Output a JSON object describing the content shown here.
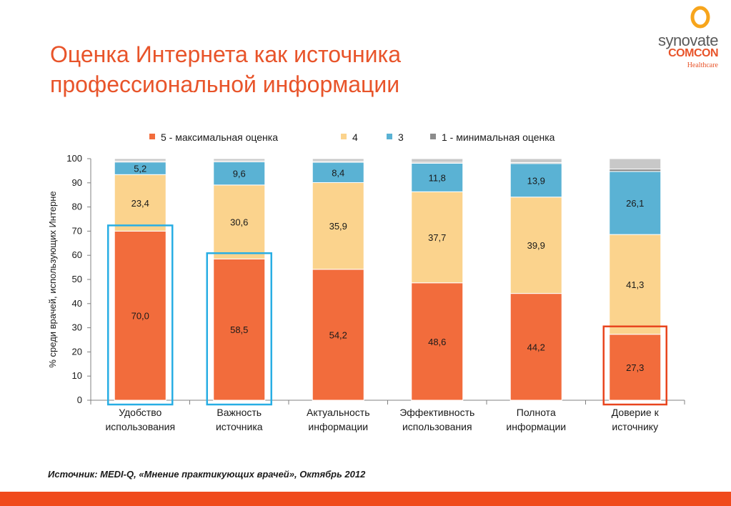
{
  "title_lines": [
    "Оценка Интернета как источника",
    "профессиональной информации"
  ],
  "logo": {
    "line1": "synovate",
    "line2": "COMCON",
    "line3": "Healthcare"
  },
  "source": "Источник:  MEDI-Q, «Мнение практикующих врачей», Октябрь 2012",
  "colors": {
    "s5": "#f26c3c",
    "s4": "#fbd38d",
    "s3": "#5ab2d4",
    "s1": "#8c8c8c",
    "rest": "#c8c8c8",
    "box_blue": "#28aee4",
    "box_red": "#e8451e",
    "title": "#e8542a"
  },
  "chart_data": {
    "type": "bar",
    "stacked": true,
    "ylabel": "% среди врачей, использующих Интерне",
    "ylim": [
      0,
      100
    ],
    "yticks": [
      0,
      10,
      20,
      30,
      40,
      50,
      60,
      70,
      80,
      90,
      100
    ],
    "legend_position": "top",
    "categories": [
      [
        "Удобство",
        "использования"
      ],
      [
        "Важность",
        "источника"
      ],
      [
        "Актуальность",
        "информации"
      ],
      [
        "Эффективность",
        "использования"
      ],
      [
        "Полнота",
        "информации"
      ],
      [
        "Доверие к",
        "источнику"
      ]
    ],
    "series": [
      {
        "name": "5 - максимальная оценка",
        "values": [
          70.0,
          58.5,
          54.2,
          48.6,
          44.2,
          27.3
        ],
        "labels": [
          "70,0",
          "58,5",
          "54,2",
          "48,6",
          "44,2",
          "27,3"
        ]
      },
      {
        "name": "4",
        "values": [
          23.4,
          30.6,
          35.9,
          37.7,
          39.9,
          41.3
        ],
        "labels": [
          "23,4",
          "30,6",
          "35,9",
          "37,7",
          "39,9",
          "41,3"
        ]
      },
      {
        "name": "3",
        "values": [
          5.2,
          9.6,
          8.4,
          11.8,
          13.9,
          26.1
        ],
        "labels": [
          "5,2",
          "9,6",
          "8,4",
          "11,8",
          "13,9",
          "26,1"
        ]
      },
      {
        "name": "1 - минимальная оценка",
        "values": [
          0.4,
          0.4,
          0.4,
          0.4,
          0.4,
          1.0
        ],
        "labels": [
          "",
          "",
          "",
          "",
          "",
          ""
        ]
      }
    ],
    "remainder_values": [
      1.0,
      0.9,
      1.1,
      1.5,
      1.6,
      4.3
    ],
    "highlight": {
      "blue": [
        0,
        1
      ],
      "red": [
        5
      ]
    }
  }
}
